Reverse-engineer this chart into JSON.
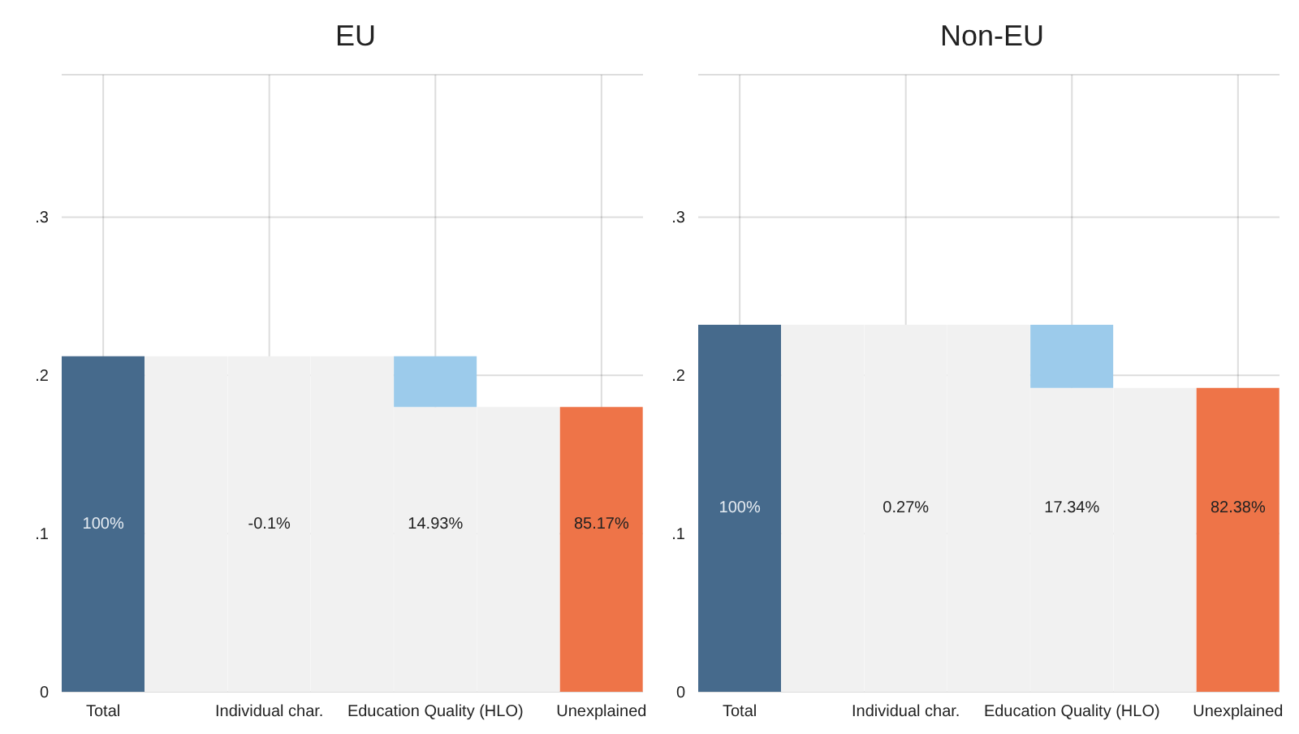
{
  "chart_data": [
    {
      "type": "bar",
      "title": "EU",
      "stacked": true,
      "grid": true,
      "categories": [
        "Total",
        null,
        "Individual char.",
        null,
        "Education Quality (HLO)",
        null,
        "Unexplained"
      ],
      "ylim": [
        0,
        0.39
      ],
      "yticks": [
        {
          "value": 0,
          "label": "0"
        },
        {
          "value": 0.1,
          "label": ".1"
        },
        {
          "value": 0.2,
          "label": ".2"
        },
        {
          "value": 0.3,
          "label": ".3"
        }
      ],
      "series": [
        {
          "color": "#f1f1f1",
          "values": [
            null,
            0.212,
            0.212,
            0.212,
            0.18,
            0.18,
            null
          ]
        },
        {
          "colors": [
            "#466a8c",
            null,
            null,
            null,
            "#9ccbeb",
            null,
            "#ee7448"
          ],
          "values": [
            0.212,
            null,
            null,
            null,
            0.032,
            null,
            0.18
          ]
        }
      ],
      "annotations": [
        "100%",
        "-0.1%",
        "14.93%",
        "85.17%"
      ]
    },
    {
      "type": "bar",
      "title": "Non-EU",
      "stacked": true,
      "grid": true,
      "categories": [
        "Total",
        null,
        "Individual char.",
        null,
        "Education Quality (HLO)",
        null,
        "Unexplained"
      ],
      "ylim": [
        0,
        0.39
      ],
      "yticks": [
        {
          "value": 0,
          "label": "0"
        },
        {
          "value": 0.1,
          "label": ".1"
        },
        {
          "value": 0.2,
          "label": ".2"
        },
        {
          "value": 0.3,
          "label": ".3"
        }
      ],
      "series": [
        {
          "color": "#f1f1f1",
          "values": [
            null,
            0.232,
            0.232,
            0.232,
            0.192,
            0.192,
            null
          ]
        },
        {
          "colors": [
            "#466a8c",
            null,
            null,
            null,
            "#9ccbeb",
            null,
            "#ee7448"
          ],
          "values": [
            0.232,
            null,
            null,
            null,
            0.04,
            null,
            0.192
          ]
        }
      ],
      "annotations": [
        "100%",
        "0.27%",
        "17.34%",
        "82.38%"
      ]
    }
  ]
}
